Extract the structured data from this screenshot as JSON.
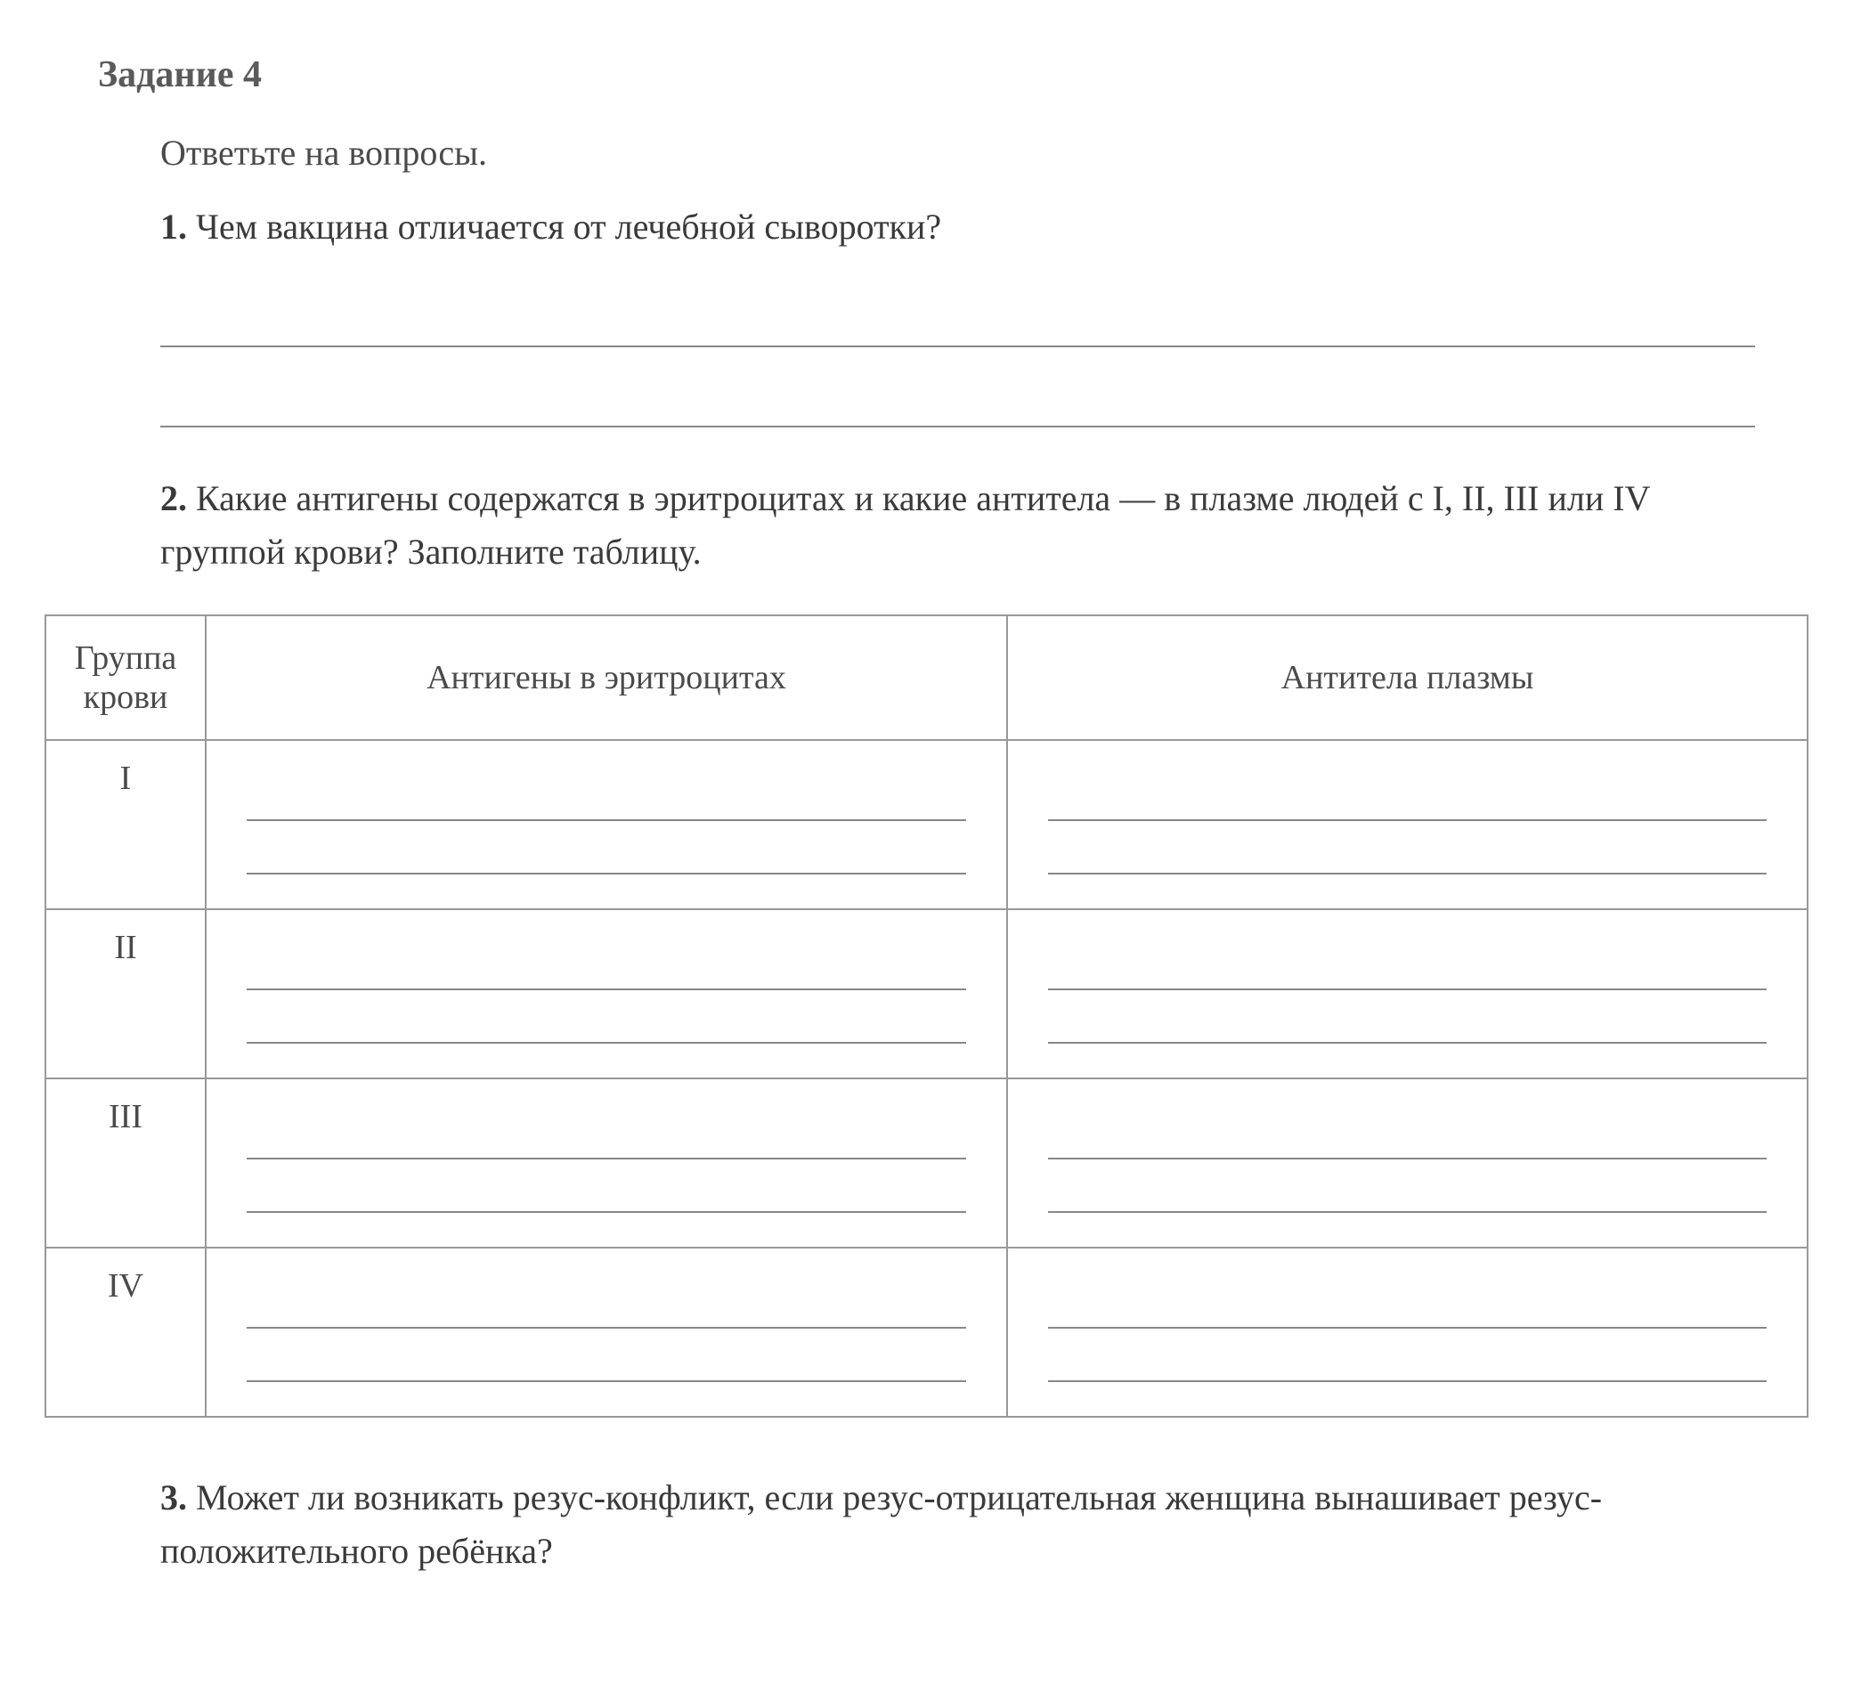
{
  "task": {
    "title": "Задание 4",
    "instruction": "Ответьте на вопросы."
  },
  "questions": {
    "q1": {
      "number": "1.",
      "text": "Чем вакцина отличается от лечебной сыворотки?"
    },
    "q2": {
      "number": "2.",
      "text": "Какие антигены содержатся в эритроцитах и какие антитела — в плазме людей с I, II, III или IV группой крови? Заполните таблицу."
    },
    "q3": {
      "number": "3.",
      "text": "Может ли возникать резус-конфликт, если резус-отрицательная женщина вынашивает резус-положительного ребёнка?"
    }
  },
  "table": {
    "headers": {
      "group": "Группа крови",
      "antigen": "Антигены в эритроцитах",
      "antibody": "Антитела плазмы"
    },
    "rows": [
      {
        "group": "I"
      },
      {
        "group": "II"
      },
      {
        "group": "III"
      },
      {
        "group": "IV"
      }
    ]
  },
  "styling": {
    "background_color": "#ffffff",
    "text_color": "#4a4a4a",
    "border_color": "#999999",
    "line_color": "#888888",
    "title_fontsize": 42,
    "body_fontsize": 40,
    "table_fontsize": 38,
    "font_family": "Georgia, Times New Roman, serif"
  }
}
